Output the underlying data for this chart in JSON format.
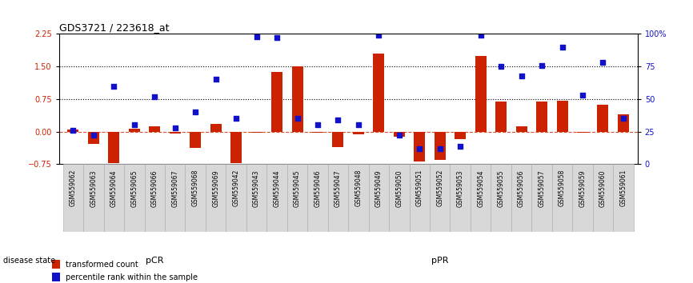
{
  "title": "GDS3721 / 223618_at",
  "samples": [
    "GSM559062",
    "GSM559063",
    "GSM559064",
    "GSM559065",
    "GSM559066",
    "GSM559067",
    "GSM559068",
    "GSM559069",
    "GSM559042",
    "GSM559043",
    "GSM559044",
    "GSM559045",
    "GSM559046",
    "GSM559047",
    "GSM559048",
    "GSM559049",
    "GSM559050",
    "GSM559051",
    "GSM559052",
    "GSM559053",
    "GSM559054",
    "GSM559055",
    "GSM559056",
    "GSM559057",
    "GSM559058",
    "GSM559059",
    "GSM559060",
    "GSM559061"
  ],
  "transformed_count": [
    0.05,
    -0.28,
    -0.72,
    0.07,
    0.12,
    -0.04,
    -0.38,
    0.18,
    -0.72,
    -0.02,
    1.38,
    1.5,
    -0.03,
    -0.35,
    -0.07,
    1.8,
    -0.12,
    -0.68,
    -0.65,
    -0.18,
    1.75,
    0.7,
    0.12,
    0.7,
    0.72,
    -0.03,
    0.62,
    0.4
  ],
  "percentile_rank": [
    26,
    22,
    60,
    30,
    52,
    28,
    40,
    65,
    35,
    98,
    97,
    35,
    30,
    34,
    30,
    99,
    22,
    12,
    12,
    14,
    99,
    75,
    68,
    76,
    90,
    53,
    78,
    35
  ],
  "pCR_count": 9,
  "pPR_count": 19,
  "bar_color": "#cc2200",
  "dot_color": "#1111cc",
  "background_color": "#ffffff",
  "yticks_left": [
    -0.75,
    0.0,
    0.75,
    1.5,
    2.25
  ],
  "yticks_right": [
    0,
    25,
    50,
    75,
    100
  ],
  "hlines": [
    0.75,
    1.5
  ],
  "disease_state_label": "disease state",
  "pCR_label": "pCR",
  "pPR_label": "pPR",
  "legend_bar_label": "transformed count",
  "legend_dot_label": "percentile rank within the sample",
  "pCR_color": "#ccffcc",
  "pPR_color": "#55ee55",
  "sample_bg_color": "#d8d8d8",
  "sample_border_color": "#aaaaaa"
}
